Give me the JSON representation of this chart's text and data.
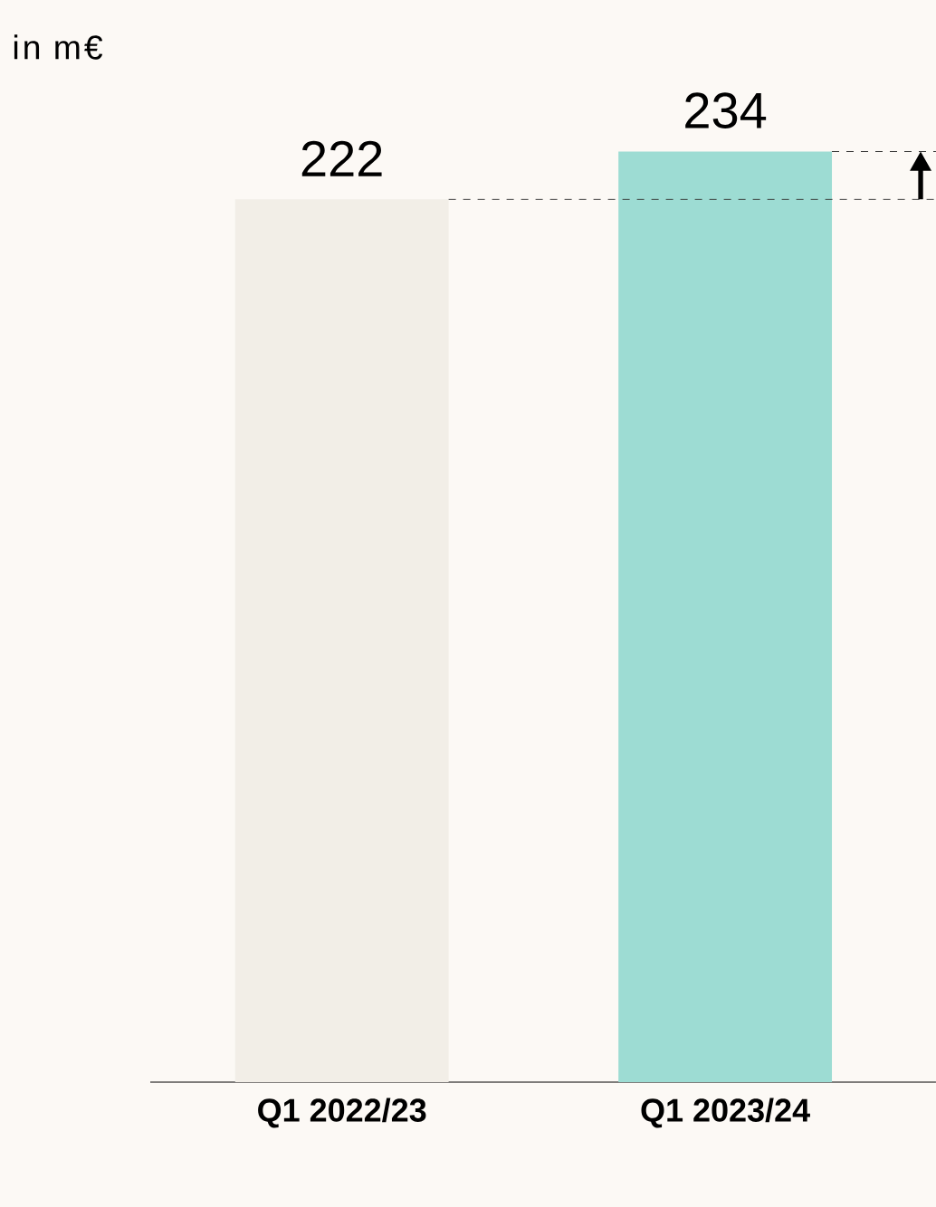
{
  "chart_data": {
    "type": "bar",
    "title": "in m€",
    "categories": [
      "Q1 2022/23",
      "Q1 2023/24"
    ],
    "values": [
      222,
      234
    ],
    "colors": [
      "#f2eee7",
      "#9ddcd3"
    ],
    "data_labels": true,
    "ref_lines": [
      {
        "axis": "y",
        "value": 222,
        "line_style": "dashed",
        "color": "#333333"
      },
      {
        "axis": "y",
        "value": 234,
        "line_style": "dashed",
        "color": "#333333"
      }
    ]
  }
}
